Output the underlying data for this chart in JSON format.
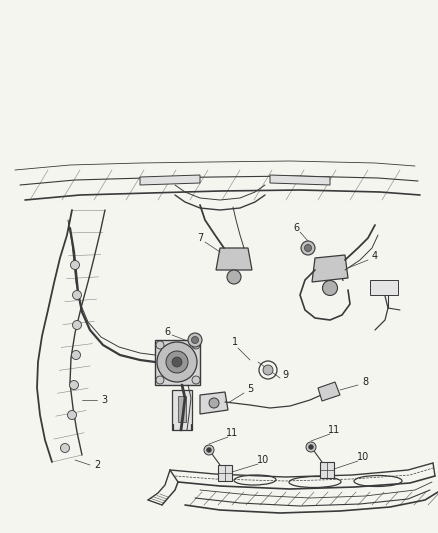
{
  "bg_color": "#f5f5f0",
  "line_color": "#3a3a3a",
  "label_color": "#222222",
  "fig_width": 4.38,
  "fig_height": 5.33,
  "dpi": 100
}
